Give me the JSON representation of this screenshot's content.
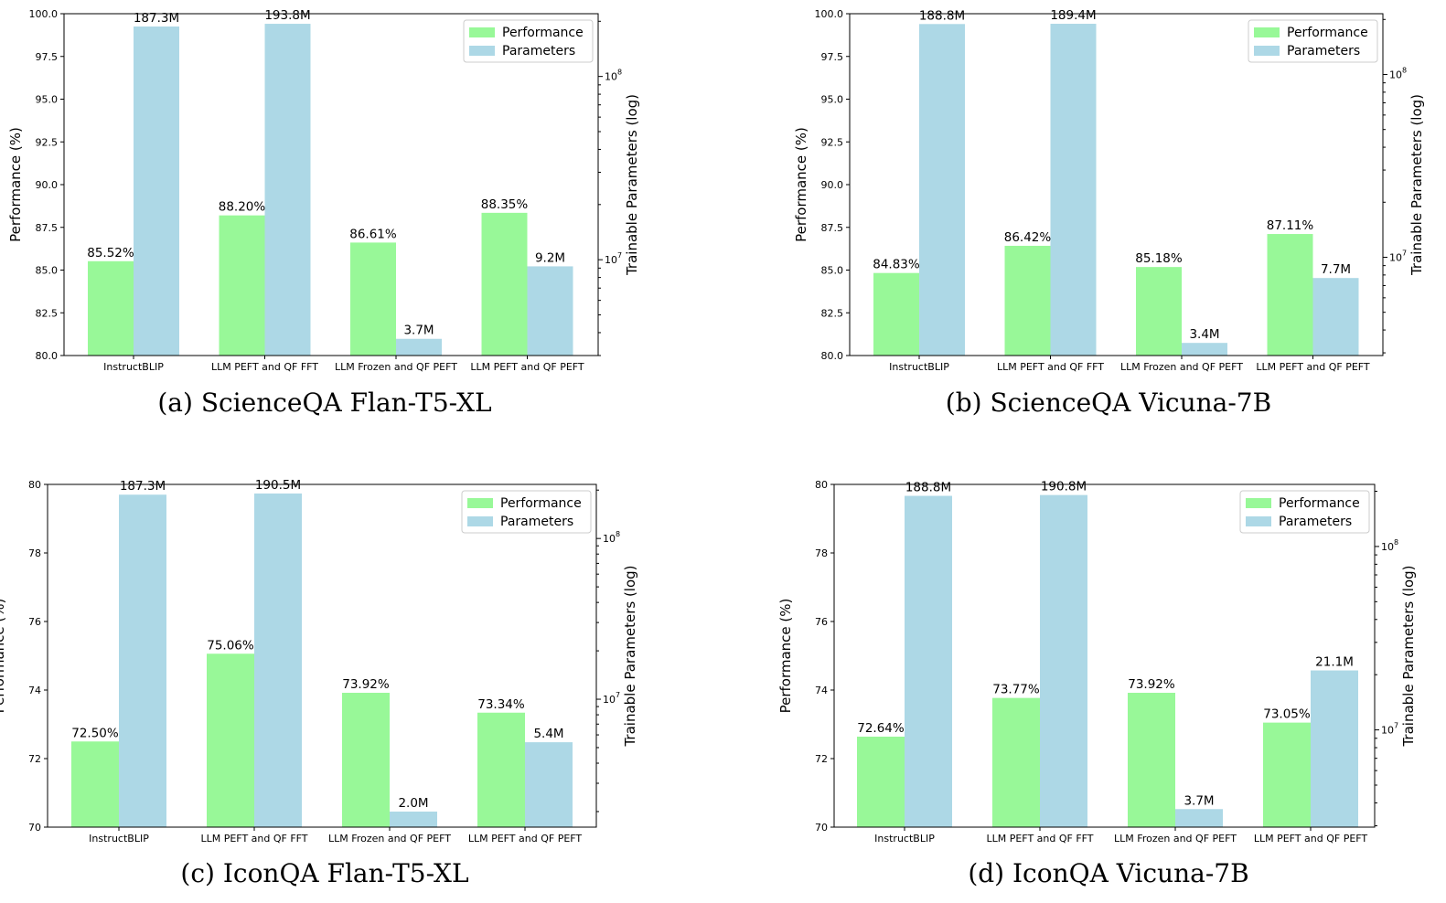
{
  "chart_data": [
    {
      "type": "bar",
      "caption": "(a) ScienceQA Flan-T5-XL",
      "categories": [
        "InstructBLIP",
        "LLM PEFT and QF FFT",
        "LLM Frozen and QF PEFT",
        "LLM PEFT and QF PEFT"
      ],
      "ylabel": "Performance (%)",
      "y2label": "Trainable Parameters (log)",
      "ylim": [
        80,
        100
      ],
      "yticks": [
        "80.0",
        "82.5",
        "85.0",
        "87.5",
        "90.0",
        "92.5",
        "95.0",
        "97.5",
        "100.0"
      ],
      "y2_log_range": [
        3000000,
        220000000
      ],
      "y2ticks": [
        {
          "value": 10000000,
          "base": "10",
          "exp": "7"
        },
        {
          "value": 100000000,
          "base": "10",
          "exp": "8"
        }
      ],
      "legend": {
        "position": "top-right",
        "entries": [
          "Performance",
          "Parameters"
        ]
      },
      "series": [
        {
          "name": "Performance",
          "axis": "left",
          "color": "#98f898",
          "values": [
            85.52,
            88.2,
            86.61,
            88.35
          ],
          "labels": [
            "85.52%",
            "88.20%",
            "86.61%",
            "88.35%"
          ]
        },
        {
          "name": "Parameters",
          "axis": "right-log",
          "color": "#add8e6",
          "values": [
            187300000,
            193800000,
            3700000,
            9200000
          ],
          "labels": [
            "187.3M",
            "193.8M",
            "3.7M",
            "9.2M"
          ]
        }
      ]
    },
    {
      "type": "bar",
      "caption": "(b) ScienceQA Vicuna-7B",
      "categories": [
        "InstructBLIP",
        "LLM PEFT and QF FFT",
        "LLM Frozen and QF PEFT",
        "LLM PEFT and QF PEFT"
      ],
      "ylabel": "Performance (%)",
      "y2label": "Trainable Parameters (log)",
      "ylim": [
        80,
        100
      ],
      "yticks": [
        "80.0",
        "82.5",
        "85.0",
        "87.5",
        "90.0",
        "92.5",
        "95.0",
        "97.5",
        "100.0"
      ],
      "y2_log_range": [
        2900000,
        215000000
      ],
      "y2ticks": [
        {
          "value": 10000000,
          "base": "10",
          "exp": "7"
        },
        {
          "value": 100000000,
          "base": "10",
          "exp": "8"
        }
      ],
      "legend": {
        "position": "top-right",
        "entries": [
          "Performance",
          "Parameters"
        ]
      },
      "series": [
        {
          "name": "Performance",
          "axis": "left",
          "color": "#98f898",
          "values": [
            84.83,
            86.42,
            85.18,
            87.11
          ],
          "labels": [
            "84.83%",
            "86.42%",
            "85.18%",
            "87.11%"
          ]
        },
        {
          "name": "Parameters",
          "axis": "right-log",
          "color": "#add8e6",
          "values": [
            188800000,
            189400000,
            3400000,
            7700000
          ],
          "labels": [
            "188.8M",
            "189.4M",
            "3.4M",
            "7.7M"
          ]
        }
      ]
    },
    {
      "type": "bar",
      "caption": "(c) IconQA Flan-T5-XL",
      "categories": [
        "InstructBLIP",
        "LLM PEFT and QF FFT",
        "LLM Frozen and QF PEFT",
        "LLM PEFT and QF PEFT"
      ],
      "ylabel": "Performance (%)",
      "y2label": "Trainable Parameters (log)",
      "ylim": [
        70,
        80
      ],
      "yticks": [
        "70",
        "72",
        "74",
        "76",
        "78",
        "80"
      ],
      "y2_log_range": [
        1600000,
        217000000
      ],
      "y2ticks": [
        {
          "value": 10000000,
          "base": "10",
          "exp": "7"
        },
        {
          "value": 100000000,
          "base": "10",
          "exp": "8"
        }
      ],
      "legend": {
        "position": "top-right",
        "entries": [
          "Performance",
          "Parameters"
        ]
      },
      "series": [
        {
          "name": "Performance",
          "axis": "left",
          "color": "#98f898",
          "values": [
            72.5,
            75.06,
            73.92,
            73.34
          ],
          "labels": [
            "72.50%",
            "75.06%",
            "73.92%",
            "73.34%"
          ]
        },
        {
          "name": "Parameters",
          "axis": "right-log",
          "color": "#add8e6",
          "values": [
            187300000,
            190500000,
            2000000,
            5400000
          ],
          "labels": [
            "187.3M",
            "190.5M",
            "2.0M",
            "5.4M"
          ]
        }
      ]
    },
    {
      "type": "bar",
      "caption": "(d) IconQA Vicuna-7B",
      "categories": [
        "InstructBLIP",
        "LLM PEFT and QF FFT",
        "LLM Frozen and QF PEFT",
        "LLM PEFT and QF PEFT"
      ],
      "ylabel": "Performance (%)",
      "y2label": "Trainable Parameters (log)",
      "ylim": [
        70,
        80
      ],
      "yticks": [
        "70",
        "72",
        "74",
        "76",
        "78",
        "80"
      ],
      "y2_log_range": [
        2950000,
        218000000
      ],
      "y2ticks": [
        {
          "value": 10000000,
          "base": "10",
          "exp": "7"
        },
        {
          "value": 100000000,
          "base": "10",
          "exp": "8"
        }
      ],
      "legend": {
        "position": "top-right",
        "entries": [
          "Performance",
          "Parameters"
        ]
      },
      "series": [
        {
          "name": "Performance",
          "axis": "left",
          "color": "#98f898",
          "values": [
            72.64,
            73.77,
            73.92,
            73.05
          ],
          "labels": [
            "72.64%",
            "73.77%",
            "73.92%",
            "73.05%"
          ]
        },
        {
          "name": "Parameters",
          "axis": "right-log",
          "color": "#add8e6",
          "values": [
            188800000,
            190800000,
            3700000,
            21100000
          ],
          "labels": [
            "188.8M",
            "190.8M",
            "3.7M",
            "21.1M"
          ]
        }
      ]
    }
  ]
}
